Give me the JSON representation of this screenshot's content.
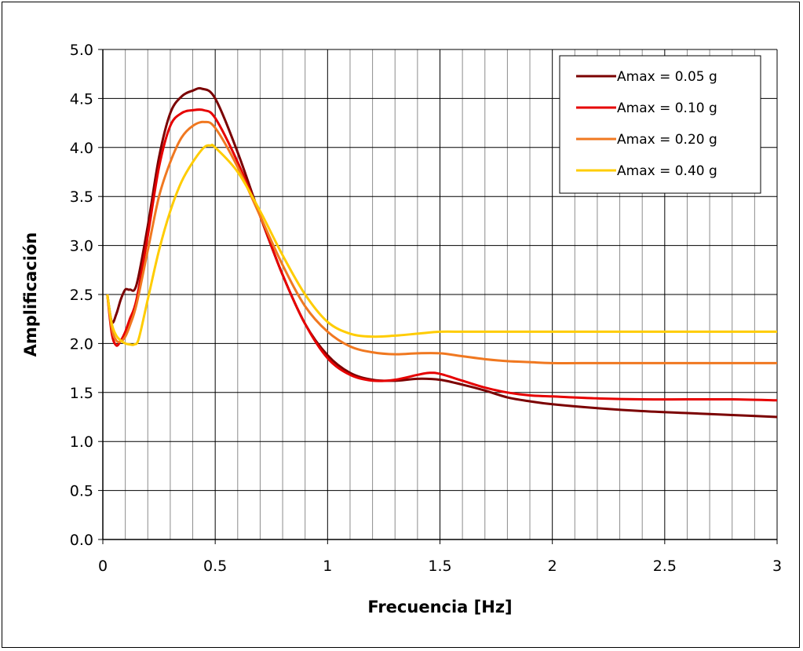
{
  "chart_data": {
    "type": "line",
    "xlabel": "Frecuencia [Hz]",
    "ylabel": "Amplificación",
    "xlim": [
      0,
      3
    ],
    "ylim": [
      0,
      5
    ],
    "x_ticks": [
      0,
      0.5,
      1,
      1.5,
      2,
      2.5,
      3
    ],
    "x_tick_labels": [
      "0",
      "0.5",
      "1",
      "1.5",
      "2",
      "2.5",
      "3"
    ],
    "y_ticks": [
      0,
      0.5,
      1,
      1.5,
      2,
      2.5,
      3,
      3.5,
      4,
      4.5,
      5
    ],
    "y_tick_labels": [
      "0.0",
      "0.5",
      "1.0",
      "1.5",
      "2.0",
      "2.5",
      "3.0",
      "3.5",
      "4.0",
      "4.5",
      "5.0"
    ],
    "x_minor_step": 0.1,
    "grid": true,
    "legend_position": "top-right",
    "series": [
      {
        "name": "Amax = 0.05 g",
        "color": "#7b0000",
        "x": [
          0.02,
          0.04,
          0.06,
          0.08,
          0.1,
          0.12,
          0.15,
          0.2,
          0.25,
          0.3,
          0.35,
          0.4,
          0.44,
          0.5,
          0.6,
          0.7,
          0.8,
          0.9,
          1.0,
          1.1,
          1.2,
          1.3,
          1.4,
          1.5,
          1.6,
          1.7,
          1.8,
          1.9,
          2.0,
          2.2,
          2.4,
          2.6,
          2.8,
          3.0
        ],
        "y": [
          2.5,
          2.22,
          2.3,
          2.45,
          2.55,
          2.55,
          2.6,
          3.2,
          3.9,
          4.35,
          4.52,
          4.58,
          4.6,
          4.5,
          3.95,
          3.3,
          2.7,
          2.2,
          1.88,
          1.7,
          1.63,
          1.62,
          1.64,
          1.63,
          1.58,
          1.52,
          1.45,
          1.41,
          1.38,
          1.34,
          1.31,
          1.29,
          1.27,
          1.25
        ]
      },
      {
        "name": "Amax = 0.10 g",
        "color": "#e60000",
        "x": [
          0.02,
          0.04,
          0.06,
          0.08,
          0.1,
          0.12,
          0.15,
          0.2,
          0.25,
          0.3,
          0.35,
          0.4,
          0.45,
          0.5,
          0.6,
          0.7,
          0.8,
          0.9,
          1.0,
          1.1,
          1.2,
          1.3,
          1.4,
          1.45,
          1.5,
          1.6,
          1.7,
          1.8,
          1.9,
          2.0,
          2.2,
          2.4,
          2.6,
          2.8,
          3.0
        ],
        "y": [
          2.5,
          2.1,
          1.98,
          2.03,
          2.12,
          2.25,
          2.45,
          3.1,
          3.8,
          4.22,
          4.35,
          4.38,
          4.38,
          4.3,
          3.85,
          3.3,
          2.7,
          2.2,
          1.85,
          1.68,
          1.62,
          1.63,
          1.68,
          1.7,
          1.69,
          1.62,
          1.55,
          1.5,
          1.47,
          1.46,
          1.44,
          1.43,
          1.43,
          1.43,
          1.42
        ]
      },
      {
        "name": "Amax = 0.20 g",
        "color": "#f07820",
        "x": [
          0.02,
          0.04,
          0.06,
          0.08,
          0.1,
          0.12,
          0.15,
          0.2,
          0.25,
          0.3,
          0.35,
          0.4,
          0.45,
          0.5,
          0.6,
          0.7,
          0.8,
          0.9,
          1.0,
          1.1,
          1.2,
          1.3,
          1.4,
          1.5,
          1.6,
          1.7,
          1.8,
          1.9,
          2.0,
          2.2,
          2.4,
          2.6,
          2.8,
          3.0
        ],
        "y": [
          2.5,
          2.15,
          2.03,
          2.02,
          2.07,
          2.18,
          2.4,
          2.95,
          3.5,
          3.85,
          4.1,
          4.22,
          4.26,
          4.2,
          3.8,
          3.3,
          2.8,
          2.38,
          2.12,
          1.97,
          1.91,
          1.89,
          1.9,
          1.9,
          1.87,
          1.84,
          1.82,
          1.81,
          1.8,
          1.8,
          1.8,
          1.8,
          1.8,
          1.8
        ]
      },
      {
        "name": "Amax = 0.40 g",
        "color": "#ffcc00",
        "x": [
          0.02,
          0.04,
          0.06,
          0.08,
          0.1,
          0.12,
          0.14,
          0.16,
          0.2,
          0.25,
          0.3,
          0.35,
          0.4,
          0.45,
          0.48,
          0.5,
          0.6,
          0.7,
          0.8,
          0.9,
          1.0,
          1.1,
          1.2,
          1.3,
          1.4,
          1.5,
          1.6,
          1.7,
          1.8,
          2.0,
          2.2,
          2.4,
          2.6,
          2.8,
          3.0
        ],
        "y": [
          2.5,
          2.2,
          2.08,
          2.03,
          2.0,
          1.99,
          1.99,
          2.05,
          2.45,
          2.95,
          3.35,
          3.65,
          3.85,
          4.0,
          4.02,
          4.0,
          3.75,
          3.35,
          2.9,
          2.5,
          2.22,
          2.1,
          2.07,
          2.08,
          2.1,
          2.12,
          2.12,
          2.12,
          2.12,
          2.12,
          2.12,
          2.12,
          2.12,
          2.12,
          2.12
        ]
      }
    ]
  }
}
